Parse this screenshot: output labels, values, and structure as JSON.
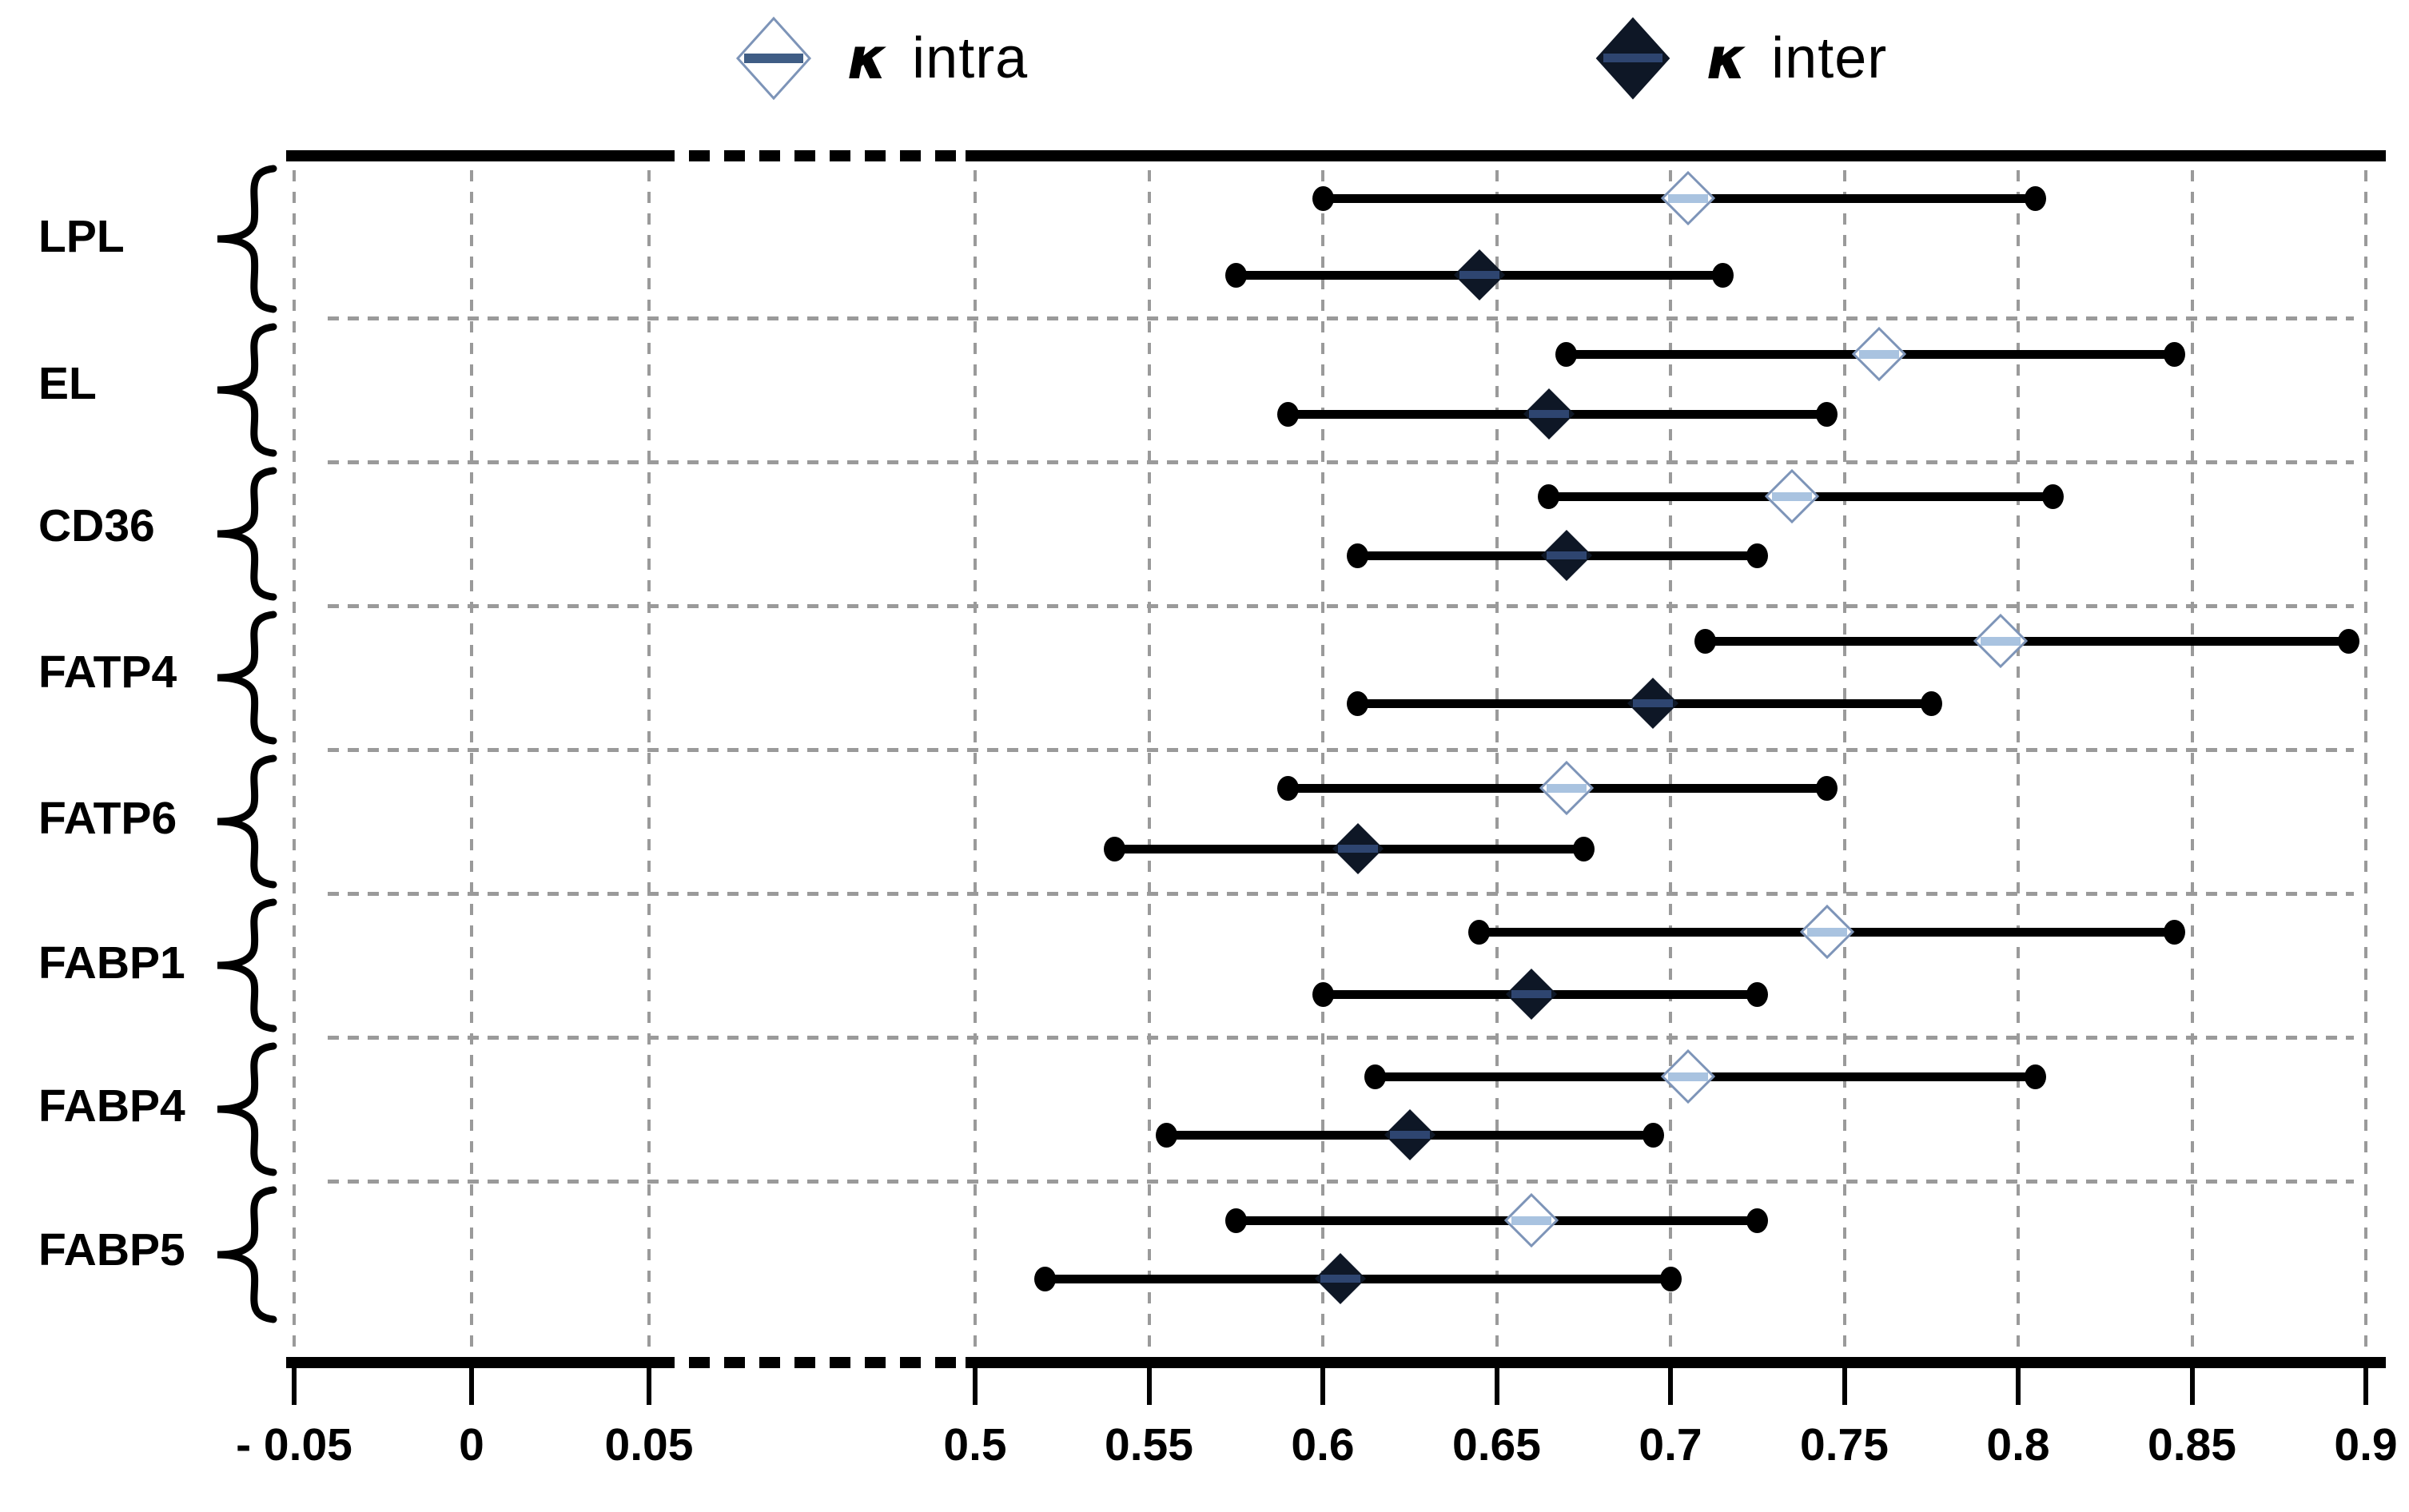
{
  "legend": {
    "items": [
      {
        "symbol": "κ",
        "label": "intra",
        "marker": "open-diamond"
      },
      {
        "symbol": "κ",
        "label": "inter",
        "marker": "filled-diamond"
      }
    ]
  },
  "chart_data": {
    "type": "scatter",
    "subtype": "forest-plot-horizontal-intervals",
    "title": "",
    "xlabel": "",
    "ylabel": "",
    "x_axis": {
      "tick_labels": [
        "- 0.05",
        "0",
        "0.05",
        "0.5",
        "0.55",
        "0.6",
        "0.65",
        "0.7",
        "0.75",
        "0.8",
        "0.85",
        "0.9"
      ],
      "tick_values": [
        -0.05,
        0,
        0.05,
        0.5,
        0.55,
        0.6,
        0.65,
        0.7,
        0.75,
        0.8,
        0.85,
        0.9
      ],
      "axis_break_between": [
        0.05,
        0.5
      ],
      "range": [
        -0.05,
        0.9
      ],
      "grid": true
    },
    "categories": [
      "LPL",
      "EL",
      "CD36",
      "FATP4",
      "FATP6",
      "FABP1",
      "FABP4",
      "FABP5"
    ],
    "series": [
      {
        "name": "κ intra",
        "marker": "open-diamond",
        "values": [
          {
            "gene": "LPL",
            "kappa": 0.705,
            "ci": [
              0.6,
              0.805
            ]
          },
          {
            "gene": "EL",
            "kappa": 0.76,
            "ci": [
              0.67,
              0.845
            ]
          },
          {
            "gene": "CD36",
            "kappa": 0.735,
            "ci": [
              0.665,
              0.81
            ]
          },
          {
            "gene": "FATP4",
            "kappa": 0.795,
            "ci": [
              0.71,
              0.895
            ]
          },
          {
            "gene": "FATP6",
            "kappa": 0.67,
            "ci": [
              0.59,
              0.745
            ]
          },
          {
            "gene": "FABP1",
            "kappa": 0.745,
            "ci": [
              0.645,
              0.845
            ]
          },
          {
            "gene": "FABP4",
            "kappa": 0.705,
            "ci": [
              0.615,
              0.805
            ]
          },
          {
            "gene": "FABP5",
            "kappa": 0.66,
            "ci": [
              0.575,
              0.725
            ]
          }
        ]
      },
      {
        "name": "κ inter",
        "marker": "filled-diamond",
        "values": [
          {
            "gene": "LPL",
            "kappa": 0.645,
            "ci": [
              0.575,
              0.715
            ]
          },
          {
            "gene": "EL",
            "kappa": 0.665,
            "ci": [
              0.59,
              0.745
            ]
          },
          {
            "gene": "CD36",
            "kappa": 0.67,
            "ci": [
              0.61,
              0.725
            ]
          },
          {
            "gene": "FATP4",
            "kappa": 0.695,
            "ci": [
              0.61,
              0.775
            ]
          },
          {
            "gene": "FATP6",
            "kappa": 0.61,
            "ci": [
              0.54,
              0.675
            ]
          },
          {
            "gene": "FABP1",
            "kappa": 0.66,
            "ci": [
              0.6,
              0.725
            ]
          },
          {
            "gene": "FABP4",
            "kappa": 0.625,
            "ci": [
              0.555,
              0.695
            ]
          },
          {
            "gene": "FABP5",
            "kappa": 0.605,
            "ci": [
              0.52,
              0.7
            ]
          }
        ]
      }
    ],
    "colors": {
      "intra_outline": "#7d94b8",
      "intra_fill": "#ffffff",
      "intra_crossbar": "#a9c3e0",
      "legend_intra_crossbar": "#3f5d85",
      "inter_fill": "#0e1726",
      "inter_crossbar": "#2e4570",
      "line": "#000000",
      "gridline": "#9a9a9a"
    }
  }
}
